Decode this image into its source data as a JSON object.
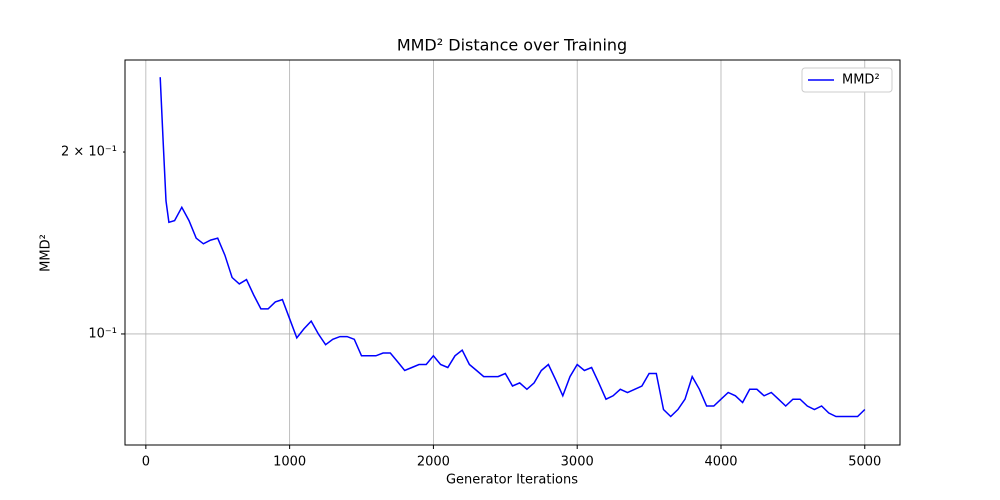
{
  "chart_data": {
    "type": "line",
    "title": "MMD² Distance over Training",
    "x_label": "Generator Iterations",
    "y_label": "MMD²",
    "log_y": true,
    "grid": true,
    "legend": "upper right",
    "xlim": [
      -145,
      5245
    ],
    "ylim": [
      0.0655,
      0.284
    ],
    "xticks": [
      0,
      1000,
      2000,
      3000,
      4000,
      5000
    ],
    "yticks": [
      {
        "value": 0.2,
        "label": "2 × 10⁻¹"
      },
      {
        "value": 0.1,
        "label": "10⁻¹"
      }
    ],
    "x": [
      100,
      120,
      140,
      160,
      200,
      250,
      300,
      350,
      400,
      450,
      500,
      550,
      600,
      650,
      700,
      750,
      800,
      850,
      900,
      950,
      1000,
      1050,
      1100,
      1150,
      1200,
      1250,
      1300,
      1350,
      1400,
      1450,
      1500,
      1550,
      1600,
      1650,
      1700,
      1750,
      1800,
      1850,
      1900,
      1950,
      2000,
      2050,
      2100,
      2150,
      2200,
      2250,
      2300,
      2350,
      2400,
      2450,
      2500,
      2550,
      2600,
      2650,
      2700,
      2750,
      2800,
      2850,
      2900,
      2950,
      3000,
      3050,
      3100,
      3150,
      3200,
      3250,
      3300,
      3350,
      3400,
      3450,
      3500,
      3550,
      3600,
      3650,
      3700,
      3750,
      3800,
      3850,
      3900,
      3950,
      4000,
      4050,
      4100,
      4150,
      4200,
      4250,
      4300,
      4350,
      4400,
      4450,
      4500,
      4550,
      4600,
      4650,
      4700,
      4750,
      4800,
      4850,
      4900,
      4950,
      5000
    ],
    "series": [
      {
        "name": "MMD²",
        "color": "#0000ff",
        "values": [
          0.266,
          0.209,
          0.166,
          0.153,
          0.154,
          0.162,
          0.154,
          0.144,
          0.141,
          0.143,
          0.144,
          0.135,
          0.124,
          0.121,
          0.123,
          0.116,
          0.11,
          0.11,
          0.113,
          0.114,
          0.106,
          0.0985,
          0.102,
          0.105,
          0.1,
          0.096,
          0.098,
          0.099,
          0.099,
          0.098,
          0.092,
          0.092,
          0.092,
          0.093,
          0.093,
          0.09,
          0.087,
          0.088,
          0.089,
          0.089,
          0.092,
          0.089,
          0.088,
          0.092,
          0.094,
          0.089,
          0.087,
          0.085,
          0.085,
          0.085,
          0.086,
          0.082,
          0.083,
          0.081,
          0.083,
          0.087,
          0.089,
          0.084,
          0.079,
          0.085,
          0.089,
          0.087,
          0.088,
          0.083,
          0.078,
          0.079,
          0.081,
          0.08,
          0.081,
          0.082,
          0.086,
          0.086,
          0.075,
          0.073,
          0.075,
          0.078,
          0.085,
          0.081,
          0.076,
          0.076,
          0.078,
          0.08,
          0.079,
          0.077,
          0.081,
          0.081,
          0.079,
          0.08,
          0.078,
          0.076,
          0.078,
          0.078,
          0.076,
          0.075,
          0.076,
          0.074,
          0.073,
          0.073,
          0.073,
          0.073,
          0.075
        ]
      }
    ]
  }
}
